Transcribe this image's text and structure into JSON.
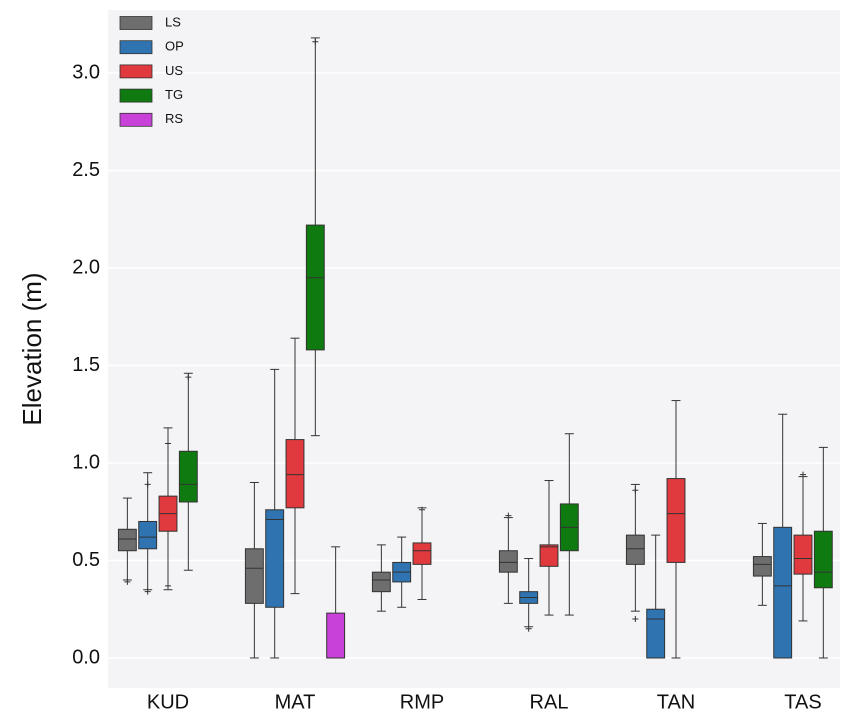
{
  "chart_data": {
    "type": "box",
    "y_label": "Elevation (m)",
    "categories": [
      "KUD",
      "MAT",
      "RMP",
      "RAL",
      "TAN",
      "TAS"
    ],
    "ylim": [
      -0.154,
      3.323
    ],
    "yticks": [
      {
        "value": 0,
        "label": "0.0"
      },
      0.5,
      {
        "value": 1,
        "label": "1.0"
      },
      1.5,
      {
        "value": 2,
        "label": "2.0"
      },
      2.5,
      {
        "value": 3,
        "label": "3.0"
      }
    ],
    "grid": true,
    "legend": "upper-left",
    "series": [
      {
        "name": "LS",
        "color": "#6e6e6e",
        "boxes": [
          {
            "whislo": 0.4,
            "q1": 0.55,
            "med": 0.61,
            "q3": 0.66,
            "whishi": 0.82,
            "fliers": [
              0.39
            ]
          },
          {
            "whislo": 0,
            "q1": 0.28,
            "med": 0.46,
            "q3": 0.56,
            "whishi": 0.9
          },
          {
            "whislo": 0.24,
            "q1": 0.34,
            "med": 0.4,
            "q3": 0.44,
            "whishi": 0.58
          },
          {
            "whislo": 0.28,
            "q1": 0.44,
            "med": 0.49,
            "q3": 0.55,
            "whishi": 0.72,
            "fliers": [
              0.73
            ]
          },
          {
            "whislo": 0.24,
            "q1": 0.48,
            "med": 0.56,
            "q3": 0.63,
            "whishi": 0.89,
            "fliers": [
              0.86,
              0.2
            ]
          },
          {
            "whislo": 0.27,
            "q1": 0.42,
            "med": 0.48,
            "q3": 0.52,
            "whishi": 0.69
          }
        ]
      },
      {
        "name": "OP",
        "color": "#2f74b0",
        "boxes": [
          {
            "whislo": 0.35,
            "q1": 0.56,
            "med": 0.62,
            "q3": 0.7,
            "whishi": 0.95,
            "fliers": [
              0.89,
              0.34
            ]
          },
          {
            "whislo": 0,
            "q1": 0.26,
            "med": 0.71,
            "q3": 0.76,
            "whishi": 1.48
          },
          {
            "whislo": 0.26,
            "q1": 0.39,
            "med": 0.44,
            "q3": 0.49,
            "whishi": 0.62
          },
          {
            "whislo": 0.16,
            "q1": 0.28,
            "med": 0.31,
            "q3": 0.34,
            "whishi": 0.51,
            "fliers": [
              0.15
            ]
          },
          {
            "whislo": 0,
            "q1": 0,
            "med": 0.2,
            "q3": 0.25,
            "whishi": 0.63
          },
          {
            "whislo": 0,
            "q1": 0,
            "med": 0.37,
            "q3": 0.67,
            "whishi": 1.25
          }
        ]
      },
      {
        "name": "US",
        "color": "#e03a3e",
        "boxes": [
          {
            "whislo": 0.35,
            "q1": 0.65,
            "med": 0.74,
            "q3": 0.83,
            "whishi": 1.18,
            "fliers": [
              1.1,
              0.37
            ]
          },
          {
            "whislo": 0.33,
            "q1": 0.77,
            "med": 0.94,
            "q3": 1.12,
            "whishi": 1.64
          },
          {
            "whislo": 0.3,
            "q1": 0.48,
            "med": 0.55,
            "q3": 0.59,
            "whishi": 0.77,
            "fliers": [
              0.76
            ]
          },
          {
            "whislo": 0.22,
            "q1": 0.47,
            "med": 0.57,
            "q3": 0.58,
            "whishi": 0.91
          },
          {
            "whislo": 0,
            "q1": 0.49,
            "med": 0.74,
            "q3": 0.92,
            "whishi": 1.32
          },
          {
            "whislo": 0.19,
            "q1": 0.43,
            "med": 0.51,
            "q3": 0.63,
            "whishi": 0.93,
            "fliers": [
              0.94
            ]
          }
        ]
      },
      {
        "name": "TG",
        "color": "#0f7a0f",
        "boxes": [
          {
            "whislo": 0.45,
            "q1": 0.8,
            "med": 0.89,
            "q3": 1.06,
            "whishi": 1.46,
            "fliers": [
              1.44
            ]
          },
          {
            "whislo": 1.14,
            "q1": 1.58,
            "med": 1.95,
            "q3": 2.22,
            "whishi": 3.18,
            "fliers": [
              3.16
            ]
          },
          null,
          {
            "whislo": 0.22,
            "q1": 0.55,
            "med": 0.67,
            "q3": 0.79,
            "whishi": 1.15
          },
          null,
          {
            "whislo": 0,
            "q1": 0.36,
            "med": 0.44,
            "q3": 0.65,
            "whishi": 1.08
          }
        ]
      },
      {
        "name": "RS",
        "color": "#c841d8",
        "boxes": [
          null,
          {
            "whislo": 0,
            "q1": 0,
            "med": 0,
            "q3": 0.23,
            "whishi": 0.57
          },
          null,
          null,
          null,
          null
        ]
      }
    ]
  }
}
